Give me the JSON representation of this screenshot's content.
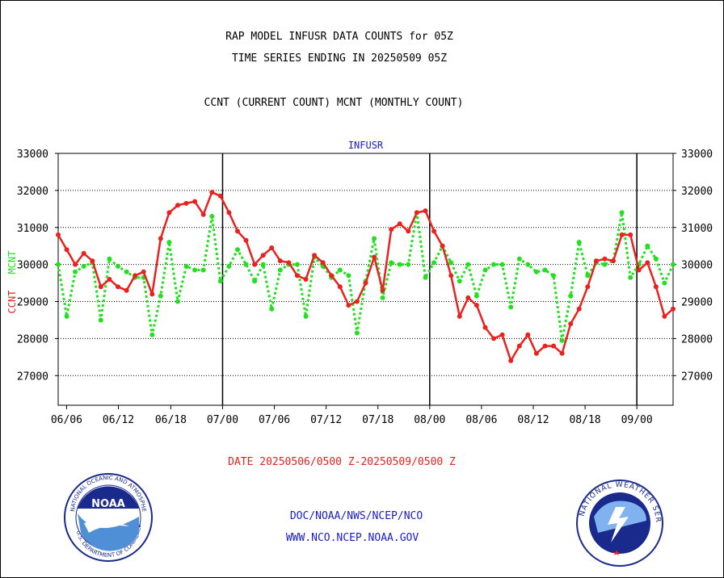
{
  "header": {
    "title_line1": "RAP MODEL INFUSR DATA COUNTS for 05Z",
    "title_line2": "TIME SERIES ENDING IN 20250509 05Z",
    "subtitle": "CCNT (CURRENT COUNT) MCNT (MONTHLY COUNT)"
  },
  "footer": {
    "date_range": "DATE 20250506/0500 Z-20250509/0500 Z",
    "link1": "DOC/NOAA/NWS/NCEP/NCO",
    "link2": "WWW.NCO.NCEP.NOAA.GOV",
    "noaa_logo_text": "NOAA",
    "noaa_ring_text": "NATIONAL OCEANIC AND ATMOSPHERIC ADMINISTRATION",
    "noaa_ring_text_bottom": "U.S. DEPARTMENT OF COMMERCE",
    "nws_ring_text": "NATIONAL WEATHER SERVICE"
  },
  "colors": {
    "ccnt": "#e8231f",
    "mcnt": "#22e01f",
    "title_blue": "#1a1ad0",
    "date_red": "#e8231f"
  },
  "chart_data": {
    "type": "line",
    "title": "INFUSR",
    "ylabel_left_ccnt": "CCNT",
    "ylabel_left_mcnt": "MCNT",
    "ylim": [
      26200,
      33000
    ],
    "yticks": [
      27000,
      28000,
      29000,
      30000,
      31000,
      32000,
      33000
    ],
    "ytick_labels": [
      "27000",
      "28000",
      "29000",
      "30000",
      "31000",
      "32000",
      "33000"
    ],
    "xlim": [
      0,
      95
    ],
    "xticks": [
      {
        "x": 1.3,
        "label": "06/06"
      },
      {
        "x": 9.3,
        "label": "06/12"
      },
      {
        "x": 17.4,
        "label": "06/18"
      },
      {
        "x": 25.4,
        "label": "07/00"
      },
      {
        "x": 33.4,
        "label": "07/06"
      },
      {
        "x": 41.4,
        "label": "07/12"
      },
      {
        "x": 49.4,
        "label": "07/18"
      },
      {
        "x": 57.4,
        "label": "08/00"
      },
      {
        "x": 65.4,
        "label": "08/06"
      },
      {
        "x": 73.4,
        "label": "08/12"
      },
      {
        "x": 81.4,
        "label": "08/18"
      },
      {
        "x": 89.4,
        "label": "09/00"
      }
    ],
    "day_boundaries": [
      25.4,
      57.4,
      89.4
    ],
    "grid": true,
    "series": [
      {
        "name": "CCNT",
        "values": [
          30800,
          30400,
          30000,
          30300,
          30100,
          29400,
          29600,
          29400,
          29300,
          29700,
          29800,
          29200,
          30700,
          31400,
          31600,
          31650,
          31700,
          31350,
          31950,
          31850,
          31400,
          30900,
          30650,
          30000,
          30250,
          30450,
          30100,
          30050,
          29700,
          29600,
          30250,
          30050,
          29700,
          29400,
          28900,
          29000,
          29500,
          30200,
          29300,
          30950,
          31100,
          30900,
          31400,
          31450,
          30900,
          30500,
          29700,
          28600,
          29100,
          28900,
          28300,
          28000,
          28100,
          27400,
          27800,
          28100,
          27600,
          27800,
          27800,
          27600,
          28400,
          28800,
          29400,
          30100,
          30150,
          30100,
          30800,
          30800,
          29850,
          30050,
          29400,
          28600,
          28800
        ]
      },
      {
        "name": "MCNT",
        "values": [
          30000,
          28600,
          29800,
          29950,
          30050,
          28500,
          30150,
          29950,
          29800,
          29650,
          29650,
          28100,
          29150,
          30600,
          29000,
          29950,
          29850,
          29850,
          31300,
          29550,
          29950,
          30400,
          30000,
          29550,
          30000,
          28800,
          29850,
          30000,
          30000,
          28600,
          30200,
          29950,
          29650,
          29850,
          29700,
          28150,
          29550,
          30700,
          29100,
          30050,
          30000,
          30000,
          31400,
          29650,
          30050,
          30500,
          30050,
          29550,
          30000,
          29150,
          29850,
          30000,
          30000,
          28850,
          30150,
          30000,
          29800,
          29850,
          29700,
          27950,
          29150,
          30600,
          29700,
          30050,
          30000,
          30100,
          31400,
          29650,
          30000,
          30500,
          30150,
          29500,
          30000
        ]
      }
    ]
  }
}
